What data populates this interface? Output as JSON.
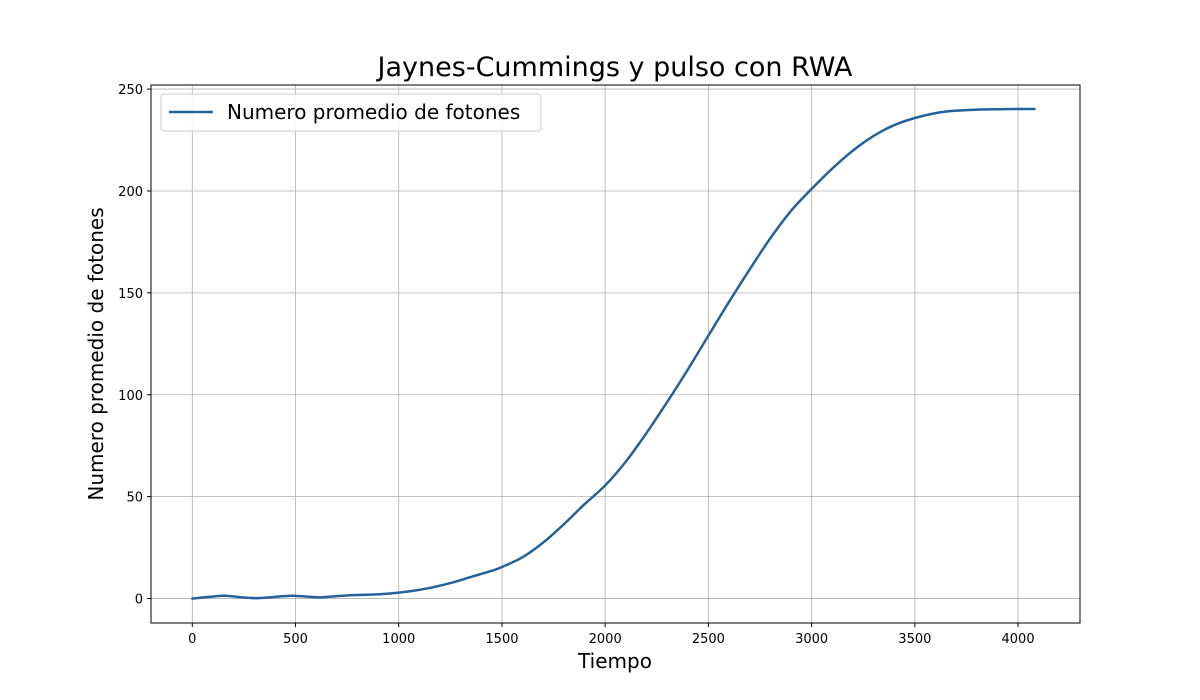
{
  "chart_data": {
    "type": "line",
    "title": "Jaynes-Cummings y pulso con RWA",
    "xlabel": "Tiempo",
    "ylabel": "Numero promedio de fotones",
    "xlim": [
      -200,
      4300
    ],
    "ylim": [
      -12,
      252
    ],
    "xticks": [
      0,
      500,
      1000,
      1500,
      2000,
      2500,
      3000,
      3500,
      4000
    ],
    "yticks": [
      0,
      50,
      100,
      150,
      200,
      250
    ],
    "grid": true,
    "legend_position": "top-left",
    "series": [
      {
        "name": "Numero promedio de fotones",
        "color": "#23629a",
        "x": [
          0,
          80,
          160,
          240,
          320,
          400,
          480,
          560,
          620,
          700,
          780,
          860,
          950,
          1050,
          1150,
          1250,
          1350,
          1450,
          1500,
          1600,
          1700,
          1800,
          1900,
          2000,
          2100,
          2200,
          2300,
          2400,
          2500,
          2600,
          2700,
          2800,
          2900,
          3000,
          3100,
          3200,
          3300,
          3400,
          3500,
          3600,
          3700,
          3800,
          3900,
          4000,
          4080
        ],
        "y": [
          0,
          0.8,
          1.4,
          0.6,
          0.2,
          0.8,
          1.4,
          0.9,
          0.6,
          1.2,
          1.7,
          1.9,
          2.4,
          3.5,
          5.2,
          7.6,
          10.6,
          13.6,
          15.5,
          20.3,
          27.5,
          36.5,
          46.3,
          55.5,
          67.2,
          81.2,
          96.4,
          112.3,
          129.0,
          145.6,
          161.5,
          176.8,
          190.2,
          201.0,
          211.0,
          219.8,
          227.0,
          232.3,
          235.8,
          238.2,
          239.4,
          239.9,
          240.1,
          240.2,
          240.2
        ]
      }
    ]
  }
}
